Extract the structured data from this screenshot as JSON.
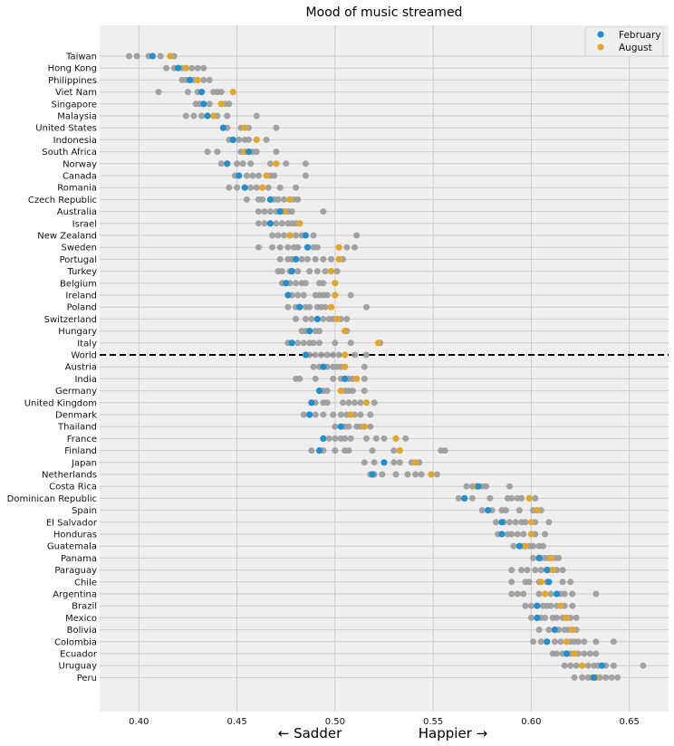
{
  "chart_data": {
    "type": "scatter",
    "title": "Mood of music streamed",
    "xlabel_left": "← Sadder",
    "xlabel_right": "Happier →",
    "xlim": [
      0.38,
      0.67
    ],
    "xticks": [
      "0.40",
      "0.45",
      "0.50",
      "0.55",
      "0.60",
      "0.65"
    ],
    "grid": true,
    "legend_placement": "top-right",
    "colors": {
      "february": "#1f8fd0",
      "august": "#e3a628",
      "other": "#9a9a9a",
      "background": "#efefef",
      "grid": "#cbcbcb",
      "world_line": "#000000"
    },
    "series": [
      {
        "name": "February",
        "color": "#1f8fd0"
      },
      {
        "name": "August",
        "color": "#e3a628"
      }
    ],
    "reference_line": "World",
    "countries": [
      {
        "name": "Taiwan",
        "feb": 0.407,
        "aug": 0.416,
        "others": [
          0.395,
          0.399,
          0.405,
          0.411,
          0.418
        ]
      },
      {
        "name": "Hong Kong",
        "feb": 0.42,
        "aug": 0.424,
        "others": [
          0.414,
          0.418,
          0.422,
          0.427,
          0.43,
          0.433
        ]
      },
      {
        "name": "Philippines",
        "feb": 0.426,
        "aug": 0.43,
        "others": [
          0.422,
          0.424,
          0.428,
          0.433,
          0.436
        ]
      },
      {
        "name": "Viet Nam",
        "feb": 0.432,
        "aug": 0.448,
        "others": [
          0.41,
          0.425,
          0.43,
          0.438,
          0.44,
          0.442
        ]
      },
      {
        "name": "Singapore",
        "feb": 0.433,
        "aug": 0.442,
        "others": [
          0.429,
          0.431,
          0.436,
          0.444,
          0.446
        ]
      },
      {
        "name": "Malaysia",
        "feb": 0.435,
        "aug": 0.438,
        "others": [
          0.424,
          0.428,
          0.432,
          0.44,
          0.445,
          0.46
        ]
      },
      {
        "name": "United States",
        "feb": 0.443,
        "aug": 0.454,
        "others": [
          0.445,
          0.452,
          0.456,
          0.47
        ]
      },
      {
        "name": "Indonesia",
        "feb": 0.448,
        "aug": 0.46,
        "others": [
          0.446,
          0.451,
          0.454,
          0.456,
          0.465
        ]
      },
      {
        "name": "South Africa",
        "feb": 0.456,
        "aug": 0.454,
        "others": [
          0.435,
          0.44,
          0.452,
          0.458,
          0.46,
          0.47
        ]
      },
      {
        "name": "Norway",
        "feb": 0.445,
        "aug": 0.47,
        "others": [
          0.442,
          0.45,
          0.453,
          0.457,
          0.467,
          0.475,
          0.485
        ]
      },
      {
        "name": "Canada",
        "feb": 0.451,
        "aug": 0.465,
        "others": [
          0.449,
          0.455,
          0.458,
          0.461,
          0.467,
          0.469,
          0.485
        ]
      },
      {
        "name": "Romania",
        "feb": 0.454,
        "aug": 0.463,
        "others": [
          0.446,
          0.45,
          0.457,
          0.46,
          0.466,
          0.472,
          0.48
        ]
      },
      {
        "name": "Czech Republic",
        "feb": 0.467,
        "aug": 0.477,
        "others": [
          0.455,
          0.461,
          0.463,
          0.469,
          0.471,
          0.474,
          0.479,
          0.481
        ]
      },
      {
        "name": "Australia",
        "feb": 0.472,
        "aug": 0.474,
        "others": [
          0.461,
          0.464,
          0.467,
          0.47,
          0.476,
          0.478,
          0.494
        ]
      },
      {
        "name": "Israel",
        "feb": 0.467,
        "aug": 0.482,
        "others": [
          0.461,
          0.464,
          0.47,
          0.473,
          0.476,
          0.478,
          0.48
        ]
      },
      {
        "name": "New Zealand",
        "feb": 0.485,
        "aug": 0.477,
        "others": [
          0.468,
          0.471,
          0.474,
          0.48,
          0.483,
          0.489,
          0.511
        ]
      },
      {
        "name": "Sweden",
        "feb": 0.486,
        "aug": 0.502,
        "others": [
          0.461,
          0.468,
          0.472,
          0.476,
          0.479,
          0.481,
          0.489,
          0.491,
          0.506,
          0.51
        ]
      },
      {
        "name": "Portugal",
        "feb": 0.48,
        "aug": 0.502,
        "others": [
          0.472,
          0.476,
          0.478,
          0.483,
          0.486,
          0.49,
          0.494,
          0.498,
          0.504
        ]
      },
      {
        "name": "Turkey",
        "feb": 0.478,
        "aug": 0.498,
        "others": [
          0.471,
          0.473,
          0.477,
          0.481,
          0.487,
          0.491,
          0.495,
          0.501
        ]
      },
      {
        "name": "Belgium",
        "feb": 0.475,
        "aug": 0.5,
        "others": [
          0.473,
          0.477,
          0.48,
          0.483,
          0.485,
          0.492,
          0.494
        ]
      },
      {
        "name": "Ireland",
        "feb": 0.476,
        "aug": 0.5,
        "others": [
          0.478,
          0.481,
          0.484,
          0.49,
          0.492,
          0.494,
          0.496,
          0.508
        ]
      },
      {
        "name": "Poland",
        "feb": 0.482,
        "aug": 0.498,
        "others": [
          0.476,
          0.48,
          0.485,
          0.487,
          0.491,
          0.493,
          0.495,
          0.516
        ]
      },
      {
        "name": "Switzerland",
        "feb": 0.491,
        "aug": 0.501,
        "others": [
          0.48,
          0.485,
          0.488,
          0.494,
          0.497,
          0.499,
          0.503,
          0.506
        ]
      },
      {
        "name": "Hungary",
        "feb": 0.487,
        "aug": 0.505,
        "others": [
          0.483,
          0.485,
          0.49,
          0.492,
          0.506
        ]
      },
      {
        "name": "Italy",
        "feb": 0.478,
        "aug": 0.522,
        "others": [
          0.476,
          0.481,
          0.484,
          0.487,
          0.489,
          0.492,
          0.5,
          0.508,
          0.523
        ]
      },
      {
        "name": "World",
        "feb": 0.485,
        "aug": 0.505,
        "others": [
          0.487,
          0.49,
          0.493,
          0.496,
          0.499,
          0.502,
          0.51,
          0.516
        ]
      },
      {
        "name": "Austria",
        "feb": 0.494,
        "aug": 0.505,
        "others": [
          0.489,
          0.492,
          0.496,
          0.499,
          0.501,
          0.503,
          0.515
        ]
      },
      {
        "name": "India",
        "feb": 0.505,
        "aug": 0.511,
        "others": [
          0.48,
          0.482,
          0.49,
          0.499,
          0.503,
          0.507,
          0.509,
          0.515
        ]
      },
      {
        "name": "Germany",
        "feb": 0.492,
        "aug": 0.503,
        "others": [
          0.494,
          0.496,
          0.505,
          0.507,
          0.509,
          0.515
        ]
      },
      {
        "name": "United Kingdom",
        "feb": 0.488,
        "aug": 0.516,
        "others": [
          0.49,
          0.494,
          0.496,
          0.504,
          0.507,
          0.51,
          0.513,
          0.52
        ]
      },
      {
        "name": "Denmark",
        "feb": 0.487,
        "aug": 0.508,
        "others": [
          0.484,
          0.49,
          0.494,
          0.499,
          0.503,
          0.506,
          0.51,
          0.513,
          0.518
        ]
      },
      {
        "name": "Thailand",
        "feb": 0.503,
        "aug": 0.515,
        "others": [
          0.5,
          0.505,
          0.507,
          0.511,
          0.513,
          0.518
        ]
      },
      {
        "name": "France",
        "feb": 0.494,
        "aug": 0.531,
        "others": [
          0.497,
          0.5,
          0.503,
          0.505,
          0.508,
          0.516,
          0.521,
          0.525,
          0.536
        ]
      },
      {
        "name": "Finland",
        "feb": 0.492,
        "aug": 0.533,
        "others": [
          0.488,
          0.494,
          0.5,
          0.505,
          0.507,
          0.519,
          0.53,
          0.554,
          0.556
        ]
      },
      {
        "name": "Japan",
        "feb": 0.525,
        "aug": 0.541,
        "others": [
          0.515,
          0.52,
          0.53,
          0.533,
          0.539,
          0.543
        ]
      },
      {
        "name": "Netherlands",
        "feb": 0.519,
        "aug": 0.549,
        "others": [
          0.518,
          0.52,
          0.524,
          0.531,
          0.537,
          0.541,
          0.544,
          0.552
        ]
      },
      {
        "name": "Costa Rica",
        "feb": 0.573,
        "aug": 0.572,
        "others": [
          0.567,
          0.57,
          0.575,
          0.577,
          0.589
        ]
      },
      {
        "name": "Dominican Republic",
        "feb": 0.566,
        "aug": 0.599,
        "others": [
          0.563,
          0.57,
          0.579,
          0.588,
          0.59,
          0.593,
          0.595,
          0.602
        ]
      },
      {
        "name": "Spain",
        "feb": 0.578,
        "aug": 0.603,
        "others": [
          0.575,
          0.58,
          0.585,
          0.587,
          0.594,
          0.601,
          0.605
        ]
      },
      {
        "name": "El Salvador",
        "feb": 0.585,
        "aug": 0.6,
        "others": [
          0.582,
          0.586,
          0.589,
          0.592,
          0.595,
          0.597,
          0.602,
          0.609
        ]
      },
      {
        "name": "Honduras",
        "feb": 0.585,
        "aug": 0.6,
        "others": [
          0.583,
          0.588,
          0.59,
          0.593,
          0.596,
          0.602,
          0.607
        ]
      },
      {
        "name": "Guatemala",
        "feb": 0.594,
        "aug": 0.597,
        "others": [
          0.591,
          0.596,
          0.599,
          0.601,
          0.604,
          0.606
        ]
      },
      {
        "name": "Panama",
        "feb": 0.604,
        "aug": 0.61,
        "others": [
          0.601,
          0.605,
          0.607,
          0.609,
          0.612,
          0.614
        ]
      },
      {
        "name": "Paraguay",
        "feb": 0.608,
        "aug": 0.611,
        "others": [
          0.59,
          0.595,
          0.598,
          0.602,
          0.605,
          0.609,
          0.613,
          0.616
        ]
      },
      {
        "name": "Chile",
        "feb": 0.609,
        "aug": 0.605,
        "others": [
          0.59,
          0.597,
          0.599,
          0.604,
          0.608,
          0.616,
          0.62
        ]
      },
      {
        "name": "Argentina",
        "feb": 0.613,
        "aug": 0.607,
        "others": [
          0.59,
          0.593,
          0.596,
          0.604,
          0.61,
          0.615,
          0.617,
          0.621,
          0.633
        ]
      },
      {
        "name": "Brazil",
        "feb": 0.603,
        "aug": 0.615,
        "others": [
          0.597,
          0.6,
          0.606,
          0.608,
          0.61,
          0.613,
          0.617,
          0.621
        ]
      },
      {
        "name": "Mexico",
        "feb": 0.603,
        "aug": 0.618,
        "others": [
          0.6,
          0.605,
          0.607,
          0.611,
          0.613,
          0.616,
          0.62,
          0.623
        ]
      },
      {
        "name": "Bolivia",
        "feb": 0.612,
        "aug": 0.621,
        "others": [
          0.604,
          0.609,
          0.614,
          0.617,
          0.619,
          0.623
        ]
      },
      {
        "name": "Colombia",
        "feb": 0.608,
        "aug": 0.618,
        "others": [
          0.601,
          0.605,
          0.612,
          0.615,
          0.62,
          0.622,
          0.624,
          0.627,
          0.633,
          0.642
        ]
      },
      {
        "name": "Ecuador",
        "feb": 0.618,
        "aug": 0.622,
        "others": [
          0.611,
          0.613,
          0.616,
          0.62,
          0.624,
          0.627,
          0.63,
          0.633
        ]
      },
      {
        "name": "Uruguay",
        "feb": 0.636,
        "aug": 0.626,
        "others": [
          0.617,
          0.62,
          0.623,
          0.629,
          0.632,
          0.634,
          0.638,
          0.642,
          0.657
        ]
      },
      {
        "name": "Peru",
        "feb": 0.632,
        "aug": 0.633,
        "others": [
          0.622,
          0.626,
          0.629,
          0.631,
          0.635,
          0.638,
          0.641,
          0.644
        ]
      }
    ]
  }
}
